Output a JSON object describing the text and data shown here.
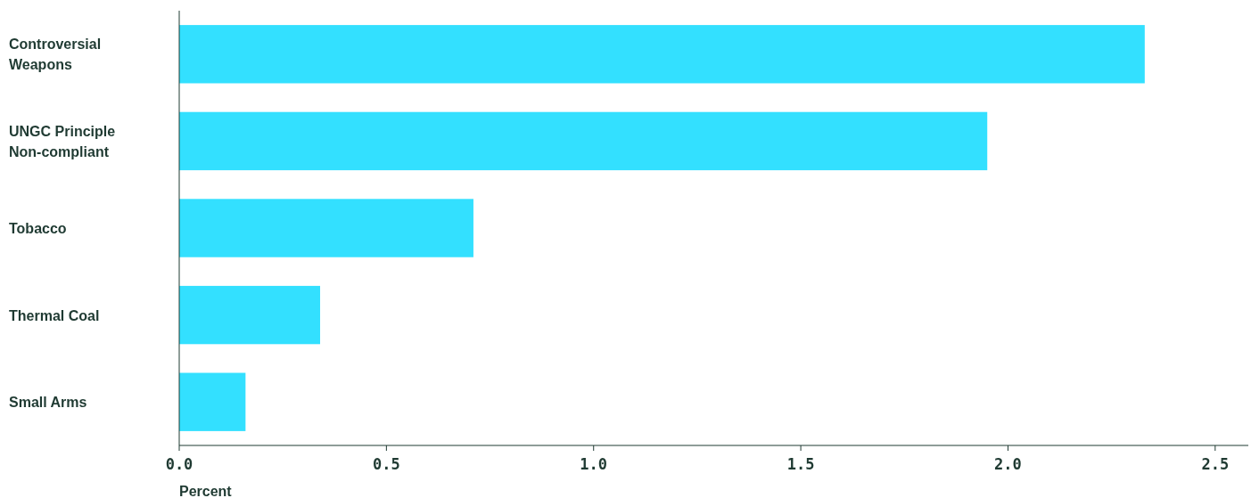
{
  "chart_data": {
    "type": "bar",
    "orientation": "horizontal",
    "xlabel": "Percent",
    "categories": [
      "Controversial Weapons",
      "UNGC Principle Non-compliant",
      "Tobacco",
      "Thermal Coal",
      "Small Arms"
    ],
    "values": [
      2.33,
      1.95,
      0.71,
      0.34,
      0.16
    ],
    "color": "#33e0ff",
    "xlim": [
      0,
      2.58
    ],
    "xticks": [
      {
        "value": 0,
        "label": "0.0"
      },
      {
        "value": 0.5,
        "label": "0.5"
      },
      {
        "value": 1,
        "label": "1.0"
      },
      {
        "value": 1.5,
        "label": "1.5"
      },
      {
        "value": 2,
        "label": "2.0"
      },
      {
        "value": 2.5,
        "label": "2.5"
      }
    ],
    "grid": false
  }
}
